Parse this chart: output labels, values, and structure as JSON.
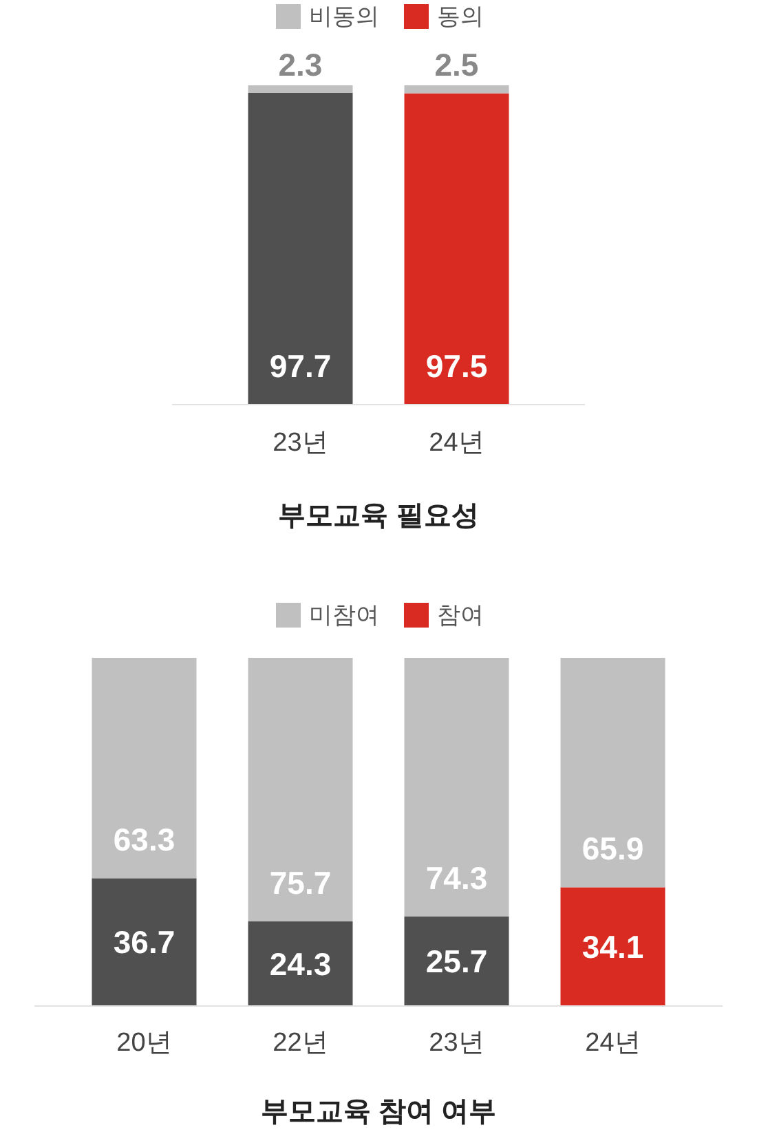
{
  "chart_data": [
    {
      "type": "bar",
      "stacked": true,
      "title": "부모교육 필요성",
      "legend": "top",
      "data_labels": true,
      "categories": [
        "23년",
        "24년"
      ],
      "series": [
        {
          "name": "동의",
          "color": "#d92b22",
          "colors": [
            "#505050",
            "#d92b22"
          ],
          "values": [
            97.7,
            97.5
          ]
        },
        {
          "name": "비동의",
          "color": "#c0c0c0",
          "values": [
            2.3,
            2.5
          ]
        }
      ]
    },
    {
      "type": "bar",
      "stacked": true,
      "title": "부모교육 참여 여부",
      "legend": "top",
      "data_labels": true,
      "categories": [
        "20년",
        "22년",
        "23년",
        "24년"
      ],
      "series": [
        {
          "name": "참여",
          "color": "#d92b22",
          "colors": [
            "#505050",
            "#505050",
            "#505050",
            "#d92b22"
          ],
          "values": [
            36.7,
            24.3,
            25.7,
            34.1
          ]
        },
        {
          "name": "미참여",
          "color": "#c0c0c0",
          "values": [
            63.3,
            75.7,
            74.3,
            65.9
          ]
        }
      ]
    }
  ]
}
